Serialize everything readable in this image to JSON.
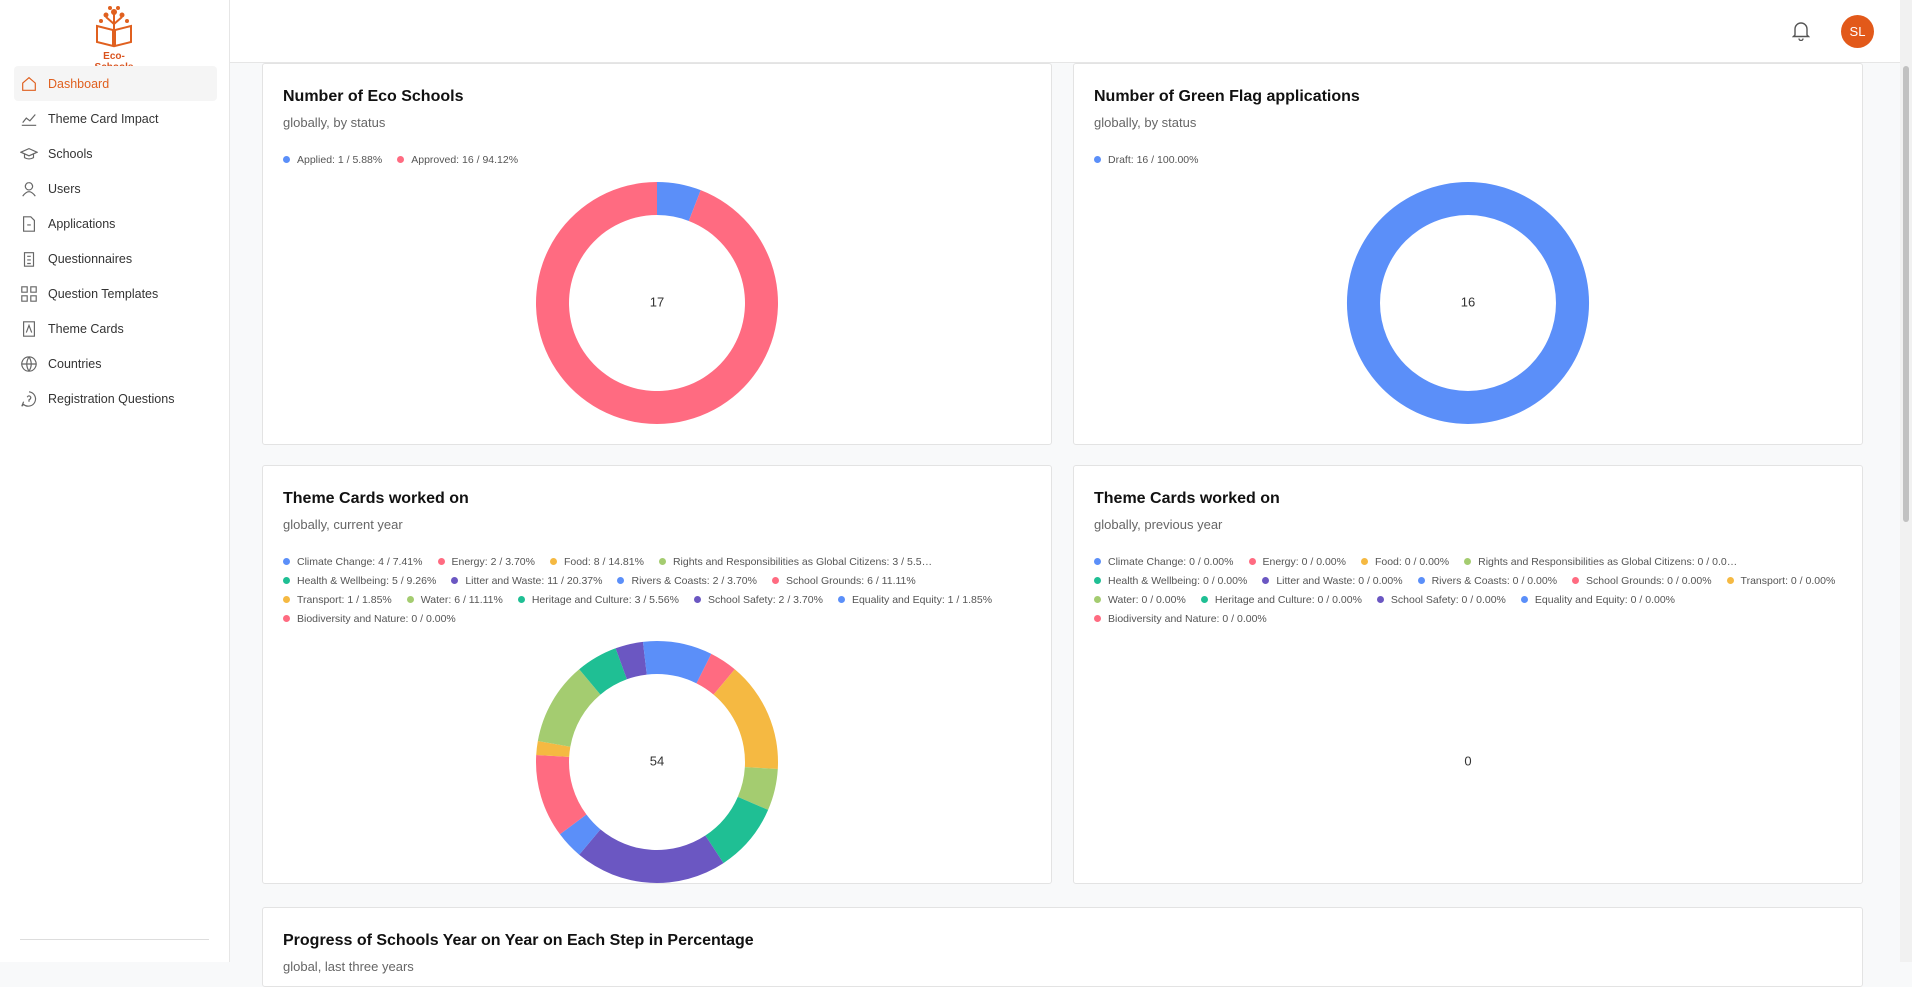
{
  "sidebar": {
    "logo_text": "Eco-Schools",
    "nav": [
      "Dashboard",
      "Theme Card Impact",
      "Schools",
      "Users",
      "Applications",
      "Questionnaires",
      "Question Templates",
      "Theme Cards",
      "Countries",
      "Registration Questions"
    ]
  },
  "header": {
    "avatar": "SL"
  },
  "cards": [
    {
      "title": "Number of Eco Schools",
      "subtitle": "globally, by status",
      "total": 17,
      "legend": [
        {
          "label": "Applied: 1 / 5.88%",
          "value": 1,
          "color": "#5b8ff9"
        },
        {
          "label": "Approved: 16 / 94.12%",
          "value": 16,
          "color": "#ff6b81"
        }
      ]
    },
    {
      "title": "Number of Green Flag applications",
      "subtitle": "globally, by status",
      "total": 16,
      "legend": [
        {
          "label": "Draft: 16 / 100.00%",
          "value": 16,
          "color": "#5b8ff9"
        }
      ]
    },
    {
      "title": "Theme Cards worked on",
      "subtitle": "globally, current year",
      "total": 54,
      "legend": [
        {
          "label": "Climate Change: 4 / 7.41%",
          "value": 4,
          "color": "#5b8ff9"
        },
        {
          "label": "Energy: 2 / 3.70%",
          "value": 2,
          "color": "#ff6b81"
        },
        {
          "label": "Food: 8 / 14.81%",
          "value": 8,
          "color": "#f5b942"
        },
        {
          "label": "Rights and Responsibilities as Global Citizens: 3 / 5.5…",
          "value": 3,
          "color": "#a4cc70"
        },
        {
          "label": "Health & Wellbeing: 5 / 9.26%",
          "value": 5,
          "color": "#1fbf94"
        },
        {
          "label": "Litter and Waste: 11 / 20.37%",
          "value": 11,
          "color": "#6b57c2"
        },
        {
          "label": "Rivers & Coasts: 2 / 3.70%",
          "value": 2,
          "color": "#5b8ff9"
        },
        {
          "label": "School Grounds: 6 / 11.11%",
          "value": 6,
          "color": "#ff6b81"
        },
        {
          "label": "Transport: 1 / 1.85%",
          "value": 1,
          "color": "#f5b942"
        },
        {
          "label": "Water: 6 / 11.11%",
          "value": 6,
          "color": "#a4cc70"
        },
        {
          "label": "Heritage and Culture: 3 / 5.56%",
          "value": 3,
          "color": "#1fbf94"
        },
        {
          "label": "School Safety: 2 / 3.70%",
          "value": 2,
          "color": "#6b57c2"
        },
        {
          "label": "Equality and Equity: 1 / 1.85%",
          "value": 1,
          "color": "#5b8ff9"
        },
        {
          "label": "Biodiversity and Nature: 0 / 0.00%",
          "value": 0,
          "color": "#ff6b81"
        }
      ]
    },
    {
      "title": "Theme Cards worked on",
      "subtitle": "globally, previous year",
      "total": 0,
      "legend": [
        {
          "label": "Climate Change: 0 / 0.00%",
          "value": 0,
          "color": "#5b8ff9"
        },
        {
          "label": "Energy: 0 / 0.00%",
          "value": 0,
          "color": "#ff6b81"
        },
        {
          "label": "Food: 0 / 0.00%",
          "value": 0,
          "color": "#f5b942"
        },
        {
          "label": "Rights and Responsibilities as Global Citizens: 0 / 0.0…",
          "value": 0,
          "color": "#a4cc70"
        },
        {
          "label": "Health & Wellbeing: 0 / 0.00%",
          "value": 0,
          "color": "#1fbf94"
        },
        {
          "label": "Litter and Waste: 0 / 0.00%",
          "value": 0,
          "color": "#6b57c2"
        },
        {
          "label": "Rivers & Coasts: 0 / 0.00%",
          "value": 0,
          "color": "#5b8ff9"
        },
        {
          "label": "School Grounds: 0 / 0.00%",
          "value": 0,
          "color": "#ff6b81"
        },
        {
          "label": "Transport: 0 / 0.00%",
          "value": 0,
          "color": "#f5b942"
        },
        {
          "label": "Water: 0 / 0.00%",
          "value": 0,
          "color": "#a4cc70"
        },
        {
          "label": "Heritage and Culture: 0 / 0.00%",
          "value": 0,
          "color": "#1fbf94"
        },
        {
          "label": "School Safety: 0 / 0.00%",
          "value": 0,
          "color": "#6b57c2"
        },
        {
          "label": "Equality and Equity: 0 / 0.00%",
          "value": 0,
          "color": "#5b8ff9"
        },
        {
          "label": "Biodiversity and Nature: 0 / 0.00%",
          "value": 0,
          "color": "#ff6b81"
        }
      ]
    }
  ],
  "progress": {
    "title": "Progress of Schools Year on Year on Each Step in Percentage",
    "subtitle": "global, last three years"
  }
}
